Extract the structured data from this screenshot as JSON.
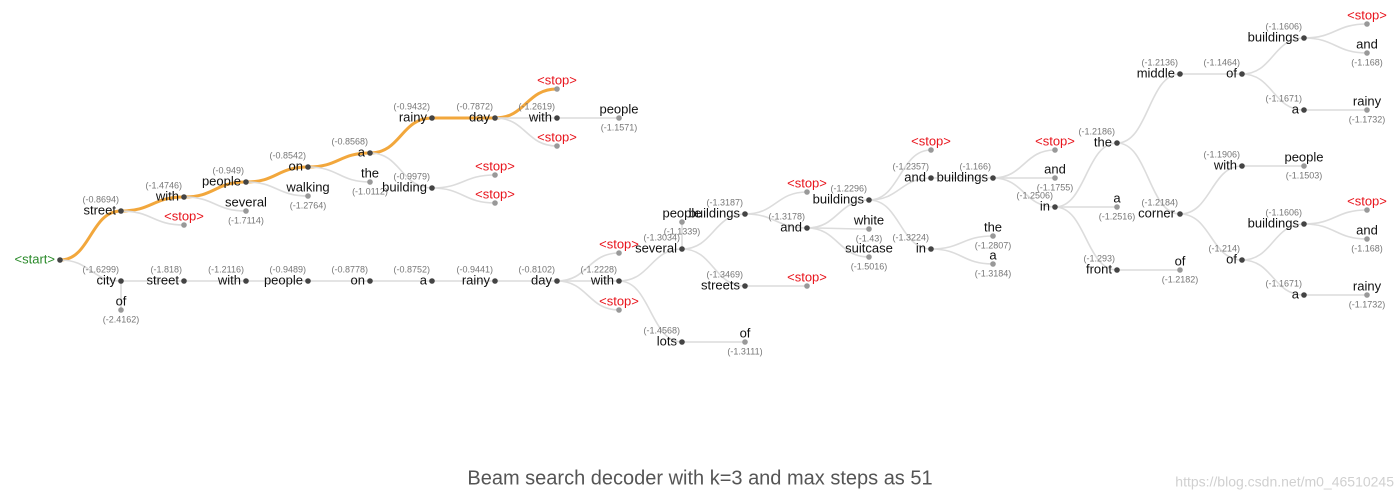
{
  "caption": "Beam search decoder with k=3 and max steps as 51",
  "watermark": "https://blog.csdn.net/m0_46510245",
  "nodes": [
    {
      "label": "<start>"
    },
    {
      "label": "street",
      "score": "(-0.8694)"
    },
    {
      "label": "city",
      "score": "(-1.6299)"
    },
    {
      "label": "with",
      "score": "(-1.4746)"
    },
    {
      "label": "<stop>"
    },
    {
      "label": "people",
      "score": "(-0.949)"
    },
    {
      "label": "several",
      "score": "(-1.7114)"
    },
    {
      "label": "on",
      "score": "(-0.8542)"
    },
    {
      "label": "walking",
      "score": "(-1.2764)"
    },
    {
      "label": "a",
      "score": "(-0.8568)"
    },
    {
      "label": "the",
      "score": "(-1.0112)"
    },
    {
      "label": "rainy",
      "score": "(-0.9432)"
    },
    {
      "label": "building",
      "score": "(-0.9979)"
    },
    {
      "label": "day",
      "score": "(-0.7872)"
    },
    {
      "label": "<stop>"
    },
    {
      "label": "<stop>"
    },
    {
      "label": "<stop>"
    },
    {
      "label": "with",
      "score": "(-1.2619)"
    },
    {
      "label": "<stop>"
    },
    {
      "label": "people",
      "score": "(-1.1571)"
    },
    {
      "label": "of",
      "score": "(-2.4162)"
    },
    {
      "label": "street",
      "score": "(-1.818)"
    },
    {
      "label": "with",
      "score": "(-1.2116)"
    },
    {
      "label": "people",
      "score": "(-0.9489)"
    },
    {
      "label": "on",
      "score": "(-0.8778)"
    },
    {
      "label": "a",
      "score": "(-0.8752)"
    },
    {
      "label": "rainy",
      "score": "(-0.9441)"
    },
    {
      "label": "day",
      "score": "(-0.8102)"
    },
    {
      "label": "<stop>"
    },
    {
      "label": "with",
      "score": "(-1.2228)"
    },
    {
      "label": "<stop>"
    },
    {
      "label": "several",
      "score": "(-1.3034)"
    },
    {
      "label": "lots",
      "score": "(-1.4568)"
    },
    {
      "label": "people",
      "score": "(-1.1339)"
    },
    {
      "label": "buildings",
      "score": "(-1.3187)"
    },
    {
      "label": "streets",
      "score": "(-1.3469)"
    },
    {
      "label": "of",
      "score": "(-1.3111)"
    },
    {
      "label": "<stop>"
    },
    {
      "label": "<stop>"
    },
    {
      "label": "and",
      "score": "(-1.3178)"
    },
    {
      "label": "buildings",
      "score": "(-1.2296)"
    },
    {
      "label": "white",
      "score": "(-1.43)"
    },
    {
      "label": "suitcase",
      "score": "(-1.5016)"
    },
    {
      "label": "<stop>"
    },
    {
      "label": "and",
      "score": "(-1.2357)"
    },
    {
      "label": "in",
      "score": "(-1.3224)"
    },
    {
      "label": "buildings",
      "score": "(-1.166)"
    },
    {
      "label": "the",
      "score": "(-1.2807)"
    },
    {
      "label": "a",
      "score": "(-1.3184)"
    },
    {
      "label": "<stop>"
    },
    {
      "label": "and",
      "score": "(-1.1755)"
    },
    {
      "label": "in",
      "score": "(-1.2506)"
    },
    {
      "label": "the",
      "score": "(-1.2186)"
    },
    {
      "label": "a",
      "score": "(-1.2516)"
    },
    {
      "label": "front",
      "score": "(-1.293)"
    },
    {
      "label": "middle",
      "score": "(-1.2136)"
    },
    {
      "label": "corner",
      "score": "(-1.2184)"
    },
    {
      "label": "of",
      "score": "(-1.2182)"
    },
    {
      "label": "of",
      "score": "(-1.1464)"
    },
    {
      "label": "with",
      "score": "(-1.1906)"
    },
    {
      "label": "of",
      "score": "(-1.214)"
    },
    {
      "label": "buildings",
      "score": "(-1.1606)"
    },
    {
      "label": "a",
      "score": "(-1.1671)"
    },
    {
      "label": "people",
      "score": "(-1.1503)"
    },
    {
      "label": "buildings",
      "score": "(-1.1606)"
    },
    {
      "label": "a",
      "score": "(-1.1671)"
    },
    {
      "label": "<stop>"
    },
    {
      "label": "and",
      "score": "(-1.168)"
    },
    {
      "label": "rainy",
      "score": "(-1.1732)"
    },
    {
      "label": "<stop>"
    },
    {
      "label": "and",
      "score": "(-1.168)"
    },
    {
      "label": "rainy",
      "score": "(-1.1732)"
    }
  ]
}
